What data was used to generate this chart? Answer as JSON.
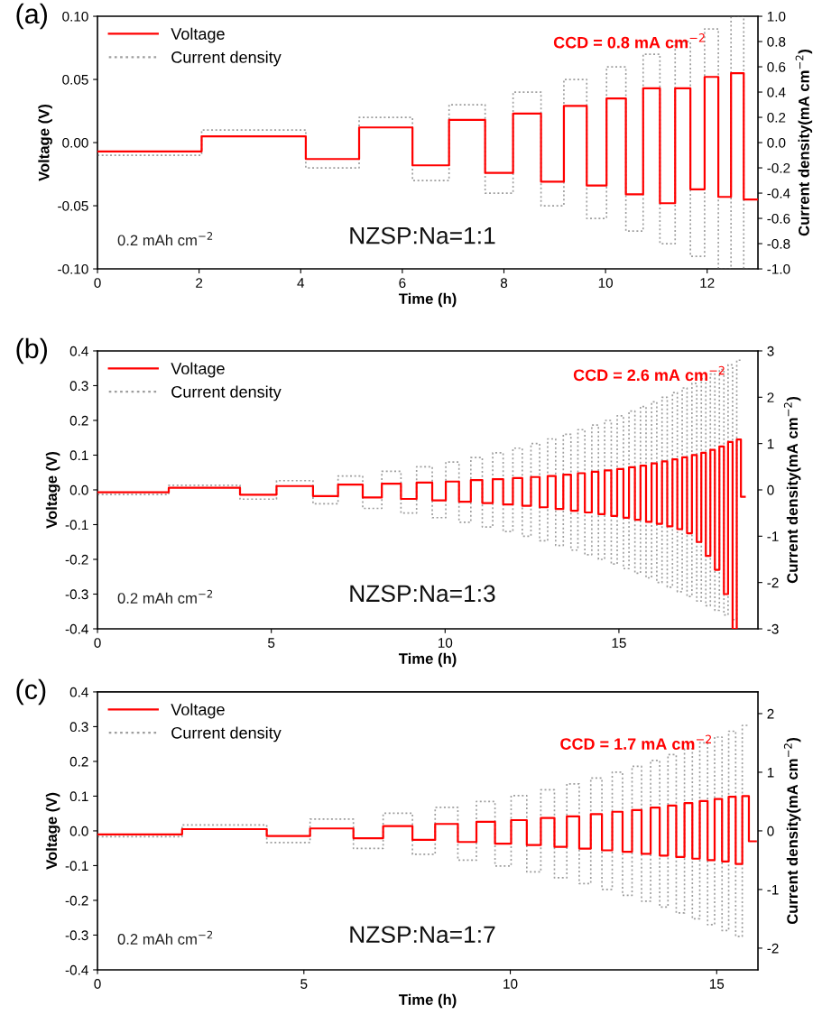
{
  "chart_data": [
    {
      "type": "step",
      "title": "(a)",
      "xlabel": "Time (h)",
      "ylabel": "Voltage (V)",
      "y2label": "Current density(mA cm$^{−2}$)",
      "legend": "top left",
      "xlim": [
        0,
        13
      ],
      "xticks": [
        0,
        2,
        4,
        6,
        8,
        10,
        12
      ],
      "ylim": [
        -0.1,
        0.1
      ],
      "yticks": [
        {
          "value": -0.1,
          "label": "-0.10"
        },
        {
          "value": -0.05,
          "label": "-0.05"
        },
        {
          "value": 0.0,
          "label": "0.00"
        },
        {
          "value": 0.05,
          "label": "0.05"
        },
        {
          "value": 0.1,
          "label": "0.10"
        }
      ],
      "y2lim": [
        -1.0,
        1.0
      ],
      "y2ticks": [
        {
          "value": -1.0,
          "label": "-1.0"
        },
        {
          "value": -0.8,
          "label": "-0.8"
        },
        {
          "value": -0.6,
          "label": "-0.6"
        },
        {
          "value": -0.4,
          "label": "-0.4"
        },
        {
          "value": -0.2,
          "label": "-0.2"
        },
        {
          "value": 0.0,
          "label": "0.0"
        },
        {
          "value": 0.2,
          "label": "0.2"
        },
        {
          "value": 0.4,
          "label": "0.4"
        },
        {
          "value": 0.6,
          "label": "0.6"
        },
        {
          "value": 0.8,
          "label": "0.8"
        },
        {
          "value": 1.0,
          "label": "1.0"
        }
      ],
      "series": [
        {
          "name": "Voltage",
          "color": "#ff0000",
          "line_style": "solid",
          "x": [
            0,
            2.05,
            4.1,
            5.15,
            6.2,
            6.92,
            7.63,
            8.18,
            8.73,
            9.18,
            9.63,
            10.02,
            10.4,
            10.74,
            11.07,
            11.37,
            11.67,
            11.95,
            12.22,
            12.47,
            12.72,
            13.0
          ],
          "values": [
            -0.007,
            0.005,
            -0.013,
            0.012,
            -0.018,
            0.018,
            -0.024,
            0.023,
            -0.031,
            0.029,
            -0.034,
            0.035,
            -0.041,
            0.043,
            -0.048,
            0.043,
            -0.037,
            0.052,
            -0.043,
            0.055,
            -0.045,
            -0.045
          ]
        },
        {
          "name": "Current density",
          "color": "#9e9e9e",
          "line_style": "dotted",
          "axis": "y2",
          "x": [
            0,
            2.05,
            4.1,
            5.15,
            6.2,
            6.92,
            7.63,
            8.18,
            8.73,
            9.18,
            9.63,
            10.02,
            10.4,
            10.74,
            11.07,
            11.37,
            11.67,
            11.95,
            12.22,
            12.47,
            12.72,
            13.0
          ],
          "values": [
            -0.1,
            0.1,
            -0.2,
            0.2,
            -0.3,
            0.3,
            -0.4,
            0.4,
            -0.5,
            0.5,
            -0.6,
            0.6,
            -0.7,
            0.7,
            -0.8,
            0.8,
            -0.9,
            0.9,
            -1.0,
            1.0,
            -1.0,
            -1.0
          ]
        }
      ],
      "annotations": [
        "CCD = 0.8 mA cm$^{−2}$",
        "0.2 mAh cm$^{−2}$",
        "NZSP:Na=1:1"
      ]
    },
    {
      "type": "step",
      "title": "(b)",
      "xlabel": "Time (h)",
      "ylabel": "Voltage (V)",
      "y2label": "Current density(mA cm$^{−2}$)",
      "legend": "top left",
      "xlim": [
        0,
        19
      ],
      "xticks": [
        0,
        5,
        10,
        15
      ],
      "ylim": [
        -0.4,
        0.4
      ],
      "yticks": [
        {
          "value": -0.4,
          "label": "-0.4"
        },
        {
          "value": -0.3,
          "label": "-0.3"
        },
        {
          "value": -0.2,
          "label": "-0.2"
        },
        {
          "value": -0.1,
          "label": "-0.1"
        },
        {
          "value": 0.0,
          "label": "0.0"
        },
        {
          "value": 0.1,
          "label": "0.1"
        },
        {
          "value": 0.2,
          "label": "0.2"
        },
        {
          "value": 0.3,
          "label": "0.3"
        },
        {
          "value": 0.4,
          "label": "0.4"
        }
      ],
      "y2lim": [
        -3,
        3
      ],
      "y2ticks": [
        {
          "value": -3,
          "label": "-3"
        },
        {
          "value": -2,
          "label": "-2"
        },
        {
          "value": -1,
          "label": "-1"
        },
        0,
        1,
        2,
        3
      ],
      "series": [
        {
          "name": "Voltage",
          "color": "#ff0000",
          "line_style": "solid",
          "x": [
            0,
            2.05,
            4.1,
            5.15,
            6.2,
            6.92,
            7.63,
            8.18,
            8.73,
            9.18,
            9.63,
            10.02,
            10.4,
            10.74,
            11.07,
            11.37,
            11.67,
            11.95,
            12.22,
            12.47,
            12.72,
            12.95,
            13.18,
            13.4,
            13.62,
            13.82,
            14.02,
            14.22,
            14.41,
            14.59,
            14.78,
            14.95,
            15.13,
            15.29,
            15.46,
            15.62,
            15.78,
            15.94,
            16.09,
            16.24,
            16.39,
            16.54,
            16.68,
            16.82,
            16.96,
            17.1,
            17.24,
            17.37,
            17.5,
            17.63,
            17.76,
            17.89,
            18.02,
            18.14,
            18.27,
            18.39,
            18.51,
            18.62
          ],
          "values": [
            -0.007,
            0.006,
            -0.014,
            0.011,
            -0.018,
            0.015,
            -0.022,
            0.018,
            -0.026,
            0.021,
            -0.03,
            0.024,
            -0.034,
            0.028,
            -0.038,
            0.031,
            -0.042,
            0.034,
            -0.046,
            0.037,
            -0.05,
            0.04,
            -0.055,
            0.044,
            -0.06,
            0.048,
            -0.065,
            0.052,
            -0.07,
            0.056,
            -0.075,
            0.06,
            -0.08,
            0.065,
            -0.086,
            0.07,
            -0.092,
            0.076,
            -0.098,
            0.082,
            -0.105,
            0.088,
            -0.113,
            0.094,
            -0.125,
            0.1,
            -0.15,
            0.107,
            -0.19,
            0.115,
            -0.23,
            0.125,
            -0.3,
            0.138,
            -0.4,
            0.145,
            -0.02,
            -0.02
          ]
        },
        {
          "name": "Current density",
          "color": "#9e9e9e",
          "line_style": "dotted",
          "axis": "y2",
          "x": [
            0,
            2.05,
            4.1,
            5.15,
            6.2,
            6.92,
            7.63,
            8.18,
            8.73,
            9.18,
            9.63,
            10.02,
            10.4,
            10.74,
            11.07,
            11.37,
            11.67,
            11.95,
            12.22,
            12.47,
            12.72,
            12.95,
            13.18,
            13.4,
            13.62,
            13.82,
            14.02,
            14.22,
            14.41,
            14.59,
            14.78,
            14.95,
            15.13,
            15.29,
            15.46,
            15.62,
            15.78,
            15.94,
            16.09,
            16.24,
            16.39,
            16.54,
            16.68,
            16.82,
            16.96,
            17.1,
            17.24,
            17.37,
            17.5,
            17.63,
            17.76,
            17.89,
            18.02,
            18.14,
            18.27,
            18.39,
            18.51
          ],
          "values": [
            -0.1,
            0.1,
            -0.2,
            0.2,
            -0.3,
            0.3,
            -0.4,
            0.4,
            -0.5,
            0.5,
            -0.6,
            0.6,
            -0.7,
            0.7,
            -0.8,
            0.8,
            -0.9,
            0.9,
            -1.0,
            1.0,
            -1.1,
            1.1,
            -1.2,
            1.2,
            -1.3,
            1.3,
            -1.4,
            1.4,
            -1.5,
            1.5,
            -1.6,
            1.6,
            -1.7,
            1.7,
            -1.8,
            1.8,
            -1.9,
            1.9,
            -2.0,
            2.0,
            -2.1,
            2.1,
            -2.2,
            2.2,
            -2.3,
            2.3,
            -2.4,
            2.4,
            -2.5,
            2.5,
            -2.6,
            2.6,
            -2.7,
            2.7,
            -2.8,
            2.8,
            2.8
          ]
        }
      ],
      "annotations": [
        "CCD = 2.6 mA cm$^{−2}$",
        "0.2 mAh cm$^{−2}$",
        "NZSP:Na=1:3"
      ]
    },
    {
      "type": "step",
      "title": "(c)",
      "xlabel": "Time (h)",
      "ylabel": "Voltage (V)",
      "y2label": "Current density(mA cm$^{−2}$)",
      "legend": "top left",
      "xlim": [
        0,
        16
      ],
      "xticks": [
        0,
        5,
        10,
        15
      ],
      "ylim": [
        -0.4,
        0.4
      ],
      "yticks": [
        {
          "value": -0.4,
          "label": "-0.4"
        },
        {
          "value": -0.3,
          "label": "-0.3"
        },
        {
          "value": -0.2,
          "label": "-0.2"
        },
        {
          "value": -0.1,
          "label": "-0.1"
        },
        {
          "value": 0.0,
          "label": "0.0"
        },
        {
          "value": 0.1,
          "label": "0.1"
        },
        {
          "value": 0.2,
          "label": "0.2"
        },
        {
          "value": 0.3,
          "label": "0.3"
        },
        {
          "value": 0.4,
          "label": "0.4"
        }
      ],
      "y2lim": [
        -2.37,
        2.37
      ],
      "y2ticks": [
        {
          "value": -2,
          "label": "-2"
        },
        {
          "value": -1,
          "label": "-1"
        },
        0,
        1,
        2
      ],
      "series": [
        {
          "name": "Voltage",
          "color": "#ff0000",
          "line_style": "solid",
          "x": [
            0,
            2.05,
            4.1,
            5.15,
            6.2,
            6.92,
            7.63,
            8.18,
            8.73,
            9.18,
            9.63,
            10.02,
            10.4,
            10.74,
            11.07,
            11.37,
            11.67,
            11.95,
            12.22,
            12.47,
            12.72,
            12.95,
            13.18,
            13.4,
            13.62,
            13.82,
            14.02,
            14.22,
            14.41,
            14.59,
            14.78,
            14.95,
            15.13,
            15.29,
            15.46,
            15.62,
            15.78,
            15.95
          ],
          "values": [
            -0.01,
            0.005,
            -0.015,
            0.007,
            -0.021,
            0.014,
            -0.026,
            0.02,
            -0.032,
            0.026,
            -0.037,
            0.031,
            -0.041,
            0.037,
            -0.046,
            0.042,
            -0.051,
            0.048,
            -0.056,
            0.055,
            -0.06,
            0.06,
            -0.066,
            0.067,
            -0.071,
            0.073,
            -0.075,
            0.08,
            -0.08,
            0.086,
            -0.084,
            0.092,
            -0.088,
            0.098,
            -0.095,
            0.1,
            -0.03,
            -0.03
          ]
        },
        {
          "name": "Current density",
          "color": "#9e9e9e",
          "line_style": "dotted",
          "axis": "y2",
          "x": [
            0,
            2.05,
            4.1,
            5.15,
            6.2,
            6.92,
            7.63,
            8.18,
            8.73,
            9.18,
            9.63,
            10.02,
            10.4,
            10.74,
            11.07,
            11.37,
            11.67,
            11.95,
            12.22,
            12.47,
            12.72,
            12.95,
            13.18,
            13.4,
            13.62,
            13.82,
            14.02,
            14.22,
            14.41,
            14.59,
            14.78,
            14.95,
            15.13,
            15.29,
            15.46,
            15.62,
            15.78
          ],
          "values": [
            -0.1,
            0.1,
            -0.2,
            0.2,
            -0.3,
            0.3,
            -0.4,
            0.4,
            -0.5,
            0.5,
            -0.6,
            0.6,
            -0.7,
            0.7,
            -0.8,
            0.8,
            -0.9,
            0.9,
            -1.0,
            1.0,
            -1.1,
            1.1,
            -1.2,
            1.2,
            -1.3,
            1.3,
            -1.4,
            1.4,
            -1.5,
            1.5,
            -1.6,
            1.6,
            -1.7,
            1.7,
            -1.8,
            1.8,
            1.8
          ]
        }
      ],
      "annotations": [
        "CCD = 1.7 mA cm$^{−2}$",
        "0.2 mAh cm$^{−2}$",
        "NZSP:Na=1:7"
      ]
    }
  ]
}
